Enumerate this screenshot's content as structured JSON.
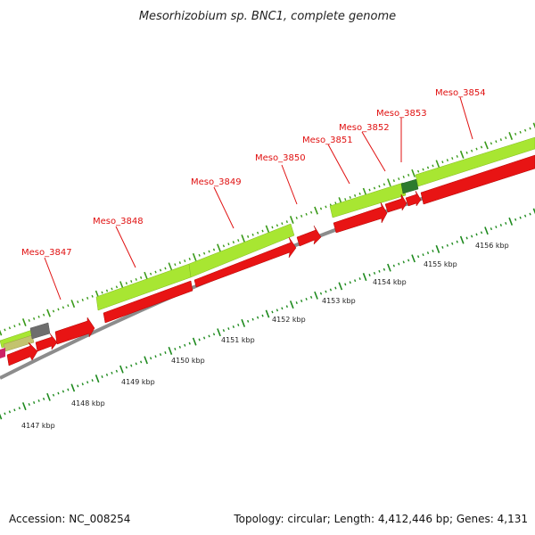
{
  "title": "Mesorhizobium sp. BNC1, complete genome",
  "footer": {
    "accession": "Accession: NC_008254",
    "summary": "Topology: circular; Length: 4,412,446 bp; Genes: 4,131"
  },
  "colors": {
    "cds_forward": "#a8e632",
    "cds_reverse": "#e81414",
    "backbone": "#8c8c8c",
    "tick_forward": "#3a9a1a",
    "tick_reverse": "#1e8a1e",
    "label": "#e01010",
    "highlight": "#2d7a2d",
    "gray_feature": "#6e6e6e",
    "olive_feature": "#c3c36e",
    "magenta_feature": "#cc2266"
  },
  "gene_labels": [
    {
      "id": "g3847",
      "text": "Meso_3847"
    },
    {
      "id": "g3848",
      "text": "Meso_3848"
    },
    {
      "id": "g3849",
      "text": "Meso_3849"
    },
    {
      "id": "g3850",
      "text": "Meso_3850"
    },
    {
      "id": "g3851",
      "text": "Meso_3851"
    },
    {
      "id": "g3852",
      "text": "Meso_3852"
    },
    {
      "id": "g3853",
      "text": "Meso_3853"
    },
    {
      "id": "g3854",
      "text": "Meso_3854"
    }
  ],
  "kbp_labels": [
    {
      "id": "k4147",
      "text": "4147 kbp"
    },
    {
      "id": "k4148",
      "text": "4148 kbp"
    },
    {
      "id": "k4149",
      "text": "4149 kbp"
    },
    {
      "id": "k4150",
      "text": "4150 kbp"
    },
    {
      "id": "k4151",
      "text": "4151 kbp"
    },
    {
      "id": "k4152",
      "text": "4152 kbp"
    },
    {
      "id": "k4153",
      "text": "4153 kbp"
    },
    {
      "id": "k4154",
      "text": "4154 kbp"
    },
    {
      "id": "k4155",
      "text": "4155 kbp"
    },
    {
      "id": "k4156",
      "text": "4156 kbp"
    }
  ]
}
